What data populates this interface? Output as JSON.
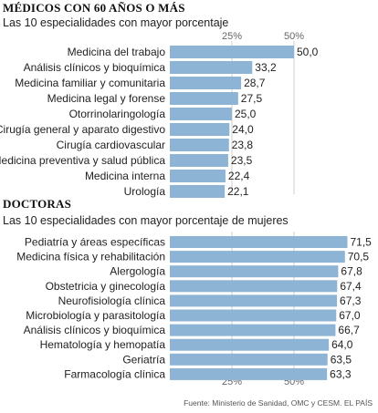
{
  "chart_data": [
    {
      "type": "bar",
      "title": "MÉDICOS CON 60 AÑOS O MÁS",
      "subtitle": "Las 10 especialidades con mayor porcentaje",
      "categories": [
        "Medicina del trabajo",
        "Análisis clínicos y bioquímica",
        "Medicina familiar y comunitaria",
        "Medicina legal y forense",
        "Otorrinolaringología",
        "Cirugía general y aparato digestivo",
        "Cirugía cardiovascular",
        "Medicina preventiva y salud pública",
        "Medicina interna",
        "Urología"
      ],
      "values": [
        50.0,
        33.2,
        28.7,
        27.5,
        25.0,
        24.0,
        23.8,
        23.5,
        22.4,
        22.1
      ],
      "value_labels": [
        "50,0",
        "33,2",
        "28,7",
        "27,5",
        "25,0",
        "24,0",
        "23,8",
        "23,5",
        "22,4",
        "22,1"
      ],
      "tick_values": [
        25,
        50
      ],
      "tick_labels": [
        "25%",
        "50%"
      ],
      "tick_position": "top",
      "grid": true,
      "bar_color": "#8db3d5"
    },
    {
      "type": "bar",
      "title": "DOCTORAS",
      "subtitle": "Las 10 especialidades con mayor porcentaje de mujeres",
      "categories": [
        "Pediatría y áreas específicas",
        "Medicina física y rehabilitación",
        "Alergología",
        "Obstetricia y ginecología",
        "Neurofisiología clínica",
        "Microbiología y parasitología",
        "Análisis clínicos y bioquímica",
        "Hematología y hemopatía",
        "Geriatría",
        "Farmacología clínica"
      ],
      "values": [
        71.5,
        70.5,
        67.8,
        67.4,
        67.3,
        67.0,
        66.7,
        64.0,
        63.5,
        63.3
      ],
      "value_labels": [
        "71,5",
        "70,5",
        "67,8",
        "67,4",
        "67,3",
        "67,0",
        "66,7",
        "64,0",
        "63,5",
        "63,3"
      ],
      "tick_values": [
        25,
        50
      ],
      "tick_labels": [
        "25%",
        "50%"
      ],
      "tick_position": "bottom",
      "grid": true,
      "bar_color": "#8db3d5"
    }
  ],
  "source": "Fuente: Ministerio de Sanidad, OMC y CESM.   EL PAÍS"
}
